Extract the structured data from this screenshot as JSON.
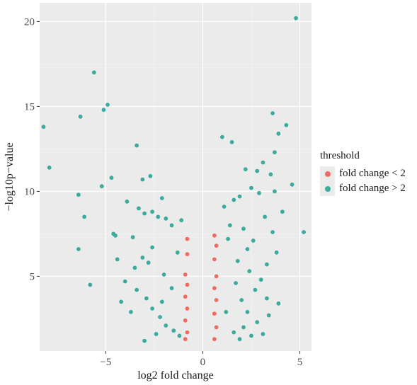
{
  "chart_data": {
    "type": "scatter",
    "title": "",
    "xlabel": "log2 fold change",
    "ylabel": "−log10p−value",
    "xlim": [
      -8.4,
      5.6
    ],
    "ylim": [
      0.6,
      21.1
    ],
    "x_ticks": [
      -5,
      0,
      5
    ],
    "y_ticks": [
      5,
      10,
      15,
      20
    ],
    "x_tick_labels": [
      "−5",
      "0",
      "5"
    ],
    "y_tick_labels": [
      "5",
      "10",
      "15",
      "20"
    ],
    "grid": true,
    "background": "#ebebeb",
    "legend": {
      "title": "threshold",
      "placement": "right",
      "entries": [
        {
          "label": "fold change < 2",
          "color": "#f8766d"
        },
        {
          "label": "fold change > 2",
          "color": "#00bfc4"
        }
      ]
    },
    "series": [
      {
        "name": "fold change > 2",
        "color": "#3aab9e",
        "points": [
          [
            -8.2,
            13.8
          ],
          [
            -7.9,
            11.4
          ],
          [
            -6.3,
            14.4
          ],
          [
            -6.4,
            9.8
          ],
          [
            -6.1,
            8.5
          ],
          [
            -6.4,
            6.6
          ],
          [
            -5.8,
            4.5
          ],
          [
            -5.6,
            17.0
          ],
          [
            -5.1,
            14.8
          ],
          [
            -4.9,
            15.1
          ],
          [
            -4.7,
            10.8
          ],
          [
            -4.4,
            6.0
          ],
          [
            -5.2,
            10.3
          ],
          [
            -4.2,
            3.5
          ],
          [
            -4.6,
            7.5
          ],
          [
            -4.5,
            7.4
          ],
          [
            -3.4,
            12.7
          ],
          [
            -3.1,
            10.7
          ],
          [
            -2.7,
            10.9
          ],
          [
            -3.9,
            9.4
          ],
          [
            -3.3,
            9.0
          ],
          [
            -3.6,
            7.3
          ],
          [
            -3.0,
            8.7
          ],
          [
            -2.6,
            8.8
          ],
          [
            -2.3,
            8.5
          ],
          [
            -1.9,
            8.4
          ],
          [
            -2.1,
            9.6
          ],
          [
            -1.1,
            8.3
          ],
          [
            -1.6,
            8.0
          ],
          [
            -3.1,
            6.1
          ],
          [
            -2.8,
            5.8
          ],
          [
            -3.5,
            5.5
          ],
          [
            -4.0,
            4.7
          ],
          [
            -3.4,
            4.2
          ],
          [
            -2.9,
            3.7
          ],
          [
            -2.6,
            3.1
          ],
          [
            -3.7,
            2.9
          ],
          [
            -2.2,
            2.6
          ],
          [
            -1.9,
            2.1
          ],
          [
            -1.5,
            1.8
          ],
          [
            -2.4,
            1.6
          ],
          [
            -1.2,
            1.5
          ],
          [
            -3.0,
            1.2
          ],
          [
            -2.6,
            6.7
          ],
          [
            -1.3,
            6.4
          ],
          [
            -2.0,
            5.1
          ],
          [
            -1.6,
            4.3
          ],
          [
            -2.1,
            3.5
          ],
          [
            1.0,
            13.2
          ],
          [
            1.5,
            12.9
          ],
          [
            2.2,
            11.3
          ],
          [
            2.8,
            11.2
          ],
          [
            3.5,
            11.0
          ],
          [
            3.7,
            10.0
          ],
          [
            2.5,
            10.2
          ],
          [
            1.9,
            9.7
          ],
          [
            1.6,
            9.5
          ],
          [
            2.9,
            9.9
          ],
          [
            3.2,
            8.5
          ],
          [
            2.1,
            7.8
          ],
          [
            2.6,
            7.1
          ],
          [
            3.6,
            7.6
          ],
          [
            3.8,
            6.4
          ],
          [
            3.3,
            5.7
          ],
          [
            2.4,
            5.3
          ],
          [
            3.0,
            4.8
          ],
          [
            1.7,
            4.6
          ],
          [
            2.7,
            4.2
          ],
          [
            3.9,
            3.4
          ],
          [
            3.4,
            2.7
          ],
          [
            2.8,
            2.3
          ],
          [
            2.1,
            2.0
          ],
          [
            1.6,
            1.7
          ],
          [
            2.5,
            1.5
          ],
          [
            1.9,
            1.3
          ],
          [
            3.1,
            1.6
          ],
          [
            3.6,
            14.6
          ],
          [
            4.8,
            20.2
          ],
          [
            4.3,
            13.9
          ],
          [
            3.9,
            13.4
          ],
          [
            3.1,
            11.7
          ],
          [
            4.1,
            8.8
          ],
          [
            5.2,
            7.6
          ],
          [
            3.7,
            12.3
          ],
          [
            4.6,
            10.4
          ],
          [
            2.3,
            6.6
          ],
          [
            1.8,
            5.9
          ],
          [
            1.3,
            7.2
          ],
          [
            1.1,
            9.1
          ],
          [
            1.4,
            8.0
          ],
          [
            2.0,
            3.6
          ],
          [
            1.2,
            2.9
          ],
          [
            2.3,
            2.9
          ],
          [
            3.3,
            3.7
          ]
        ]
      },
      {
        "name": "fold change < 2",
        "color": "#f06b64",
        "points": [
          [
            -0.8,
            7.2
          ],
          [
            -0.8,
            6.3
          ],
          [
            -0.9,
            5.1
          ],
          [
            -0.8,
            4.5
          ],
          [
            -0.9,
            3.8
          ],
          [
            -0.8,
            3.1
          ],
          [
            -0.9,
            2.4
          ],
          [
            -0.8,
            1.7
          ],
          [
            -0.9,
            1.3
          ],
          [
            0.6,
            7.4
          ],
          [
            0.7,
            6.8
          ],
          [
            0.6,
            6.0
          ],
          [
            0.7,
            5.0
          ],
          [
            0.6,
            4.3
          ],
          [
            0.7,
            3.6
          ],
          [
            0.6,
            2.8
          ],
          [
            0.7,
            2.0
          ],
          [
            0.6,
            1.3
          ]
        ]
      }
    ]
  }
}
